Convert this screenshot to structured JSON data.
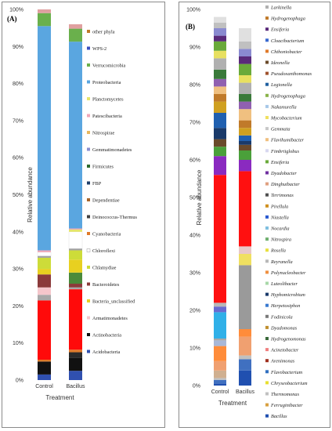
{
  "chart_data": [
    {
      "panel_label": "(A)",
      "type": "stacked_bar",
      "categories": [
        "Control",
        "Bacillus"
      ],
      "xlabel": "Treatment",
      "ylabel": "Relative abundance",
      "yticks": [
        "0%",
        "10%",
        "20%",
        "30%",
        "40%",
        "50%",
        "60%",
        "70%",
        "80%",
        "90%",
        "100%"
      ],
      "ylim": [
        0,
        100
      ],
      "legend_position": "right",
      "legend": [
        {
          "name": "other phyla",
          "color": "#c07a2a"
        },
        {
          "name": "WPS-2",
          "color": "#3a4fbf"
        },
        {
          "name": "Verrucomicrobia",
          "color": "#6ab04c"
        },
        {
          "name": "Proteobacteria",
          "color": "#5aa6e0"
        },
        {
          "name": "Planctomycetes",
          "color": "#e6e66a"
        },
        {
          "name": "Patescibacteria",
          "color": "#f0a8b8"
        },
        {
          "name": "Nitrospirae",
          "color": "#e8b860"
        },
        {
          "name": "Gemmatimonadetes",
          "color": "#8a8fd0"
        },
        {
          "name": "Firmicutes",
          "color": "#2d6b2d"
        },
        {
          "name": "FBP",
          "color": "#1f3f6b"
        },
        {
          "name": "Dependentiae",
          "color": "#a8652a"
        },
        {
          "name": "Deinococcus-Thermus",
          "color": "#404040"
        },
        {
          "name": "Cyanobacteria",
          "color": "#e07a2a"
        },
        {
          "name": "Chloroflexi",
          "color": "#ffffff"
        },
        {
          "name": "Chlamydiae",
          "color": "#cddc39"
        },
        {
          "name": "Bacteroidetes",
          "color": "#8b3a3a"
        },
        {
          "name": "Bacteria_unclassified",
          "color": "#e8d020"
        },
        {
          "name": "Armatimonadetes",
          "color": "#f5c6cb"
        },
        {
          "name": "Actinobacteria",
          "color": "#111111"
        },
        {
          "name": "Acidobacteria",
          "color": "#3050b0"
        }
      ],
      "series": [
        {
          "name": "Acidobacteria",
          "color": "#3050b0",
          "values": [
            1.5,
            2.5
          ]
        },
        {
          "name": "Actinobacteria",
          "color": "#111111",
          "values": [
            3.5,
            3.5
          ]
        },
        {
          "name": "",
          "color": "#2a2a2a",
          "values": [
            0.0,
            1.5
          ]
        },
        {
          "name": "",
          "color": "#e07a2a",
          "values": [
            0.5,
            0.7
          ]
        },
        {
          "name": "",
          "color": "#ff0a0a",
          "values": [
            16.0,
            16.3
          ]
        },
        {
          "name": "",
          "color": "#a8a8a8",
          "values": [
            1.5,
            0.5
          ]
        },
        {
          "name": "Armatimonadetes",
          "color": "#f5c6cb",
          "values": [
            2.0,
            0.0
          ]
        },
        {
          "name": "Bacteroidetes",
          "color": "#8b3a3a",
          "values": [
            3.5,
            1.0
          ]
        },
        {
          "name": "",
          "color": "#4a8a3a",
          "values": [
            0.0,
            3.0
          ]
        },
        {
          "name": "Bacteria_unclassified",
          "color": "#e8d020",
          "values": [
            1.5,
            3.5
          ]
        },
        {
          "name": "Chlamydiae",
          "color": "#cddc39",
          "values": [
            3.0,
            2.5
          ]
        },
        {
          "name": "",
          "color": "#a0a0a0",
          "values": [
            0.5,
            0.5
          ]
        },
        {
          "name": "Chloroflexi",
          "color": "#ffffff",
          "values": [
            1.0,
            4.5
          ]
        },
        {
          "name": "",
          "color": "#e6e66a",
          "values": [
            0.0,
            0.6
          ]
        },
        {
          "name": "",
          "color": "#f0a8b8",
          "values": [
            0.5,
            0.3
          ]
        },
        {
          "name": "Proteobacteria",
          "color": "#5aa6e0",
          "values": [
            60.5,
            50.4
          ]
        },
        {
          "name": "Verrucomicrobia",
          "color": "#6ab04c",
          "values": [
            3.5,
            3.5
          ]
        },
        {
          "name": "",
          "color": "#e0a0a0",
          "values": [
            1.0,
            1.2
          ]
        }
      ]
    },
    {
      "panel_label": "(B)",
      "type": "stacked_bar",
      "categories": [
        "Control",
        "Bacillus"
      ],
      "xlabel": "Treatment",
      "ylabel": "Relative abundance",
      "yticks": [
        "0%",
        "10%",
        "20%",
        "30%",
        "40%",
        "50%",
        "60%",
        "70%",
        "80%",
        "90%",
        "100%"
      ],
      "ylim": [
        0,
        100
      ],
      "legend_position": "right",
      "legend": [
        {
          "name": "Larkinella",
          "color": "#b0b0b0"
        },
        {
          "name": "Hydrogenophaga",
          "color": "#c07a2a"
        },
        {
          "name": "Ensiferia",
          "color": "#5a2a7a"
        },
        {
          "name": "Cloacibacterium",
          "color": "#3a6ad0"
        },
        {
          "name": "Chthoniobacter",
          "color": "#e07a2a"
        },
        {
          "name": "Ideonella",
          "color": "#6a4a2a"
        },
        {
          "name": "Pseudoxanthomonas",
          "color": "#a0522d"
        },
        {
          "name": "Legionella",
          "color": "#2060a0"
        },
        {
          "name": "Hydrogenophaga",
          "color": "#8ab34a"
        },
        {
          "name": "Nakamurella",
          "color": "#a8c8e8"
        },
        {
          "name": "Mycobacterium",
          "color": "#f0e060"
        },
        {
          "name": "Gemmata",
          "color": "#c8c8c8"
        },
        {
          "name": "Flavihumibacter",
          "color": "#f0c080"
        },
        {
          "name": "Fimbriiglobus",
          "color": "#d8d8f0"
        },
        {
          "name": "Ensiferia",
          "color": "#6aaa3a"
        },
        {
          "name": "Dyadobacter",
          "color": "#7030a0"
        },
        {
          "name": "Dinghuibacter",
          "color": "#e0a080"
        },
        {
          "name": "Terrimonas",
          "color": "#505050"
        },
        {
          "name": "Pirellula",
          "color": "#d09020"
        },
        {
          "name": "Niastella",
          "color": "#2a5ad0"
        },
        {
          "name": "Nocardia",
          "color": "#80c0e0"
        },
        {
          "name": "Nitrospira",
          "color": "#70b070"
        },
        {
          "name": "Rosella",
          "color": "#e8e040"
        },
        {
          "name": "Reyranella",
          "color": "#b8b8b8"
        },
        {
          "name": "Polynucleobacter",
          "color": "#f09040"
        },
        {
          "name": "Luteolibacter",
          "color": "#a8d8a8"
        },
        {
          "name": "Hyphomicrobium",
          "color": "#1a3a6a"
        },
        {
          "name": "Herpetosiphon",
          "color": "#3a7ad0"
        },
        {
          "name": "Fodinicola",
          "color": "#7a7a7a"
        },
        {
          "name": "Dyadomonas",
          "color": "#c09030"
        },
        {
          "name": "Hydrogenomonas",
          "color": "#3a6a3a"
        },
        {
          "name": "Acinetobacter",
          "color": "#f08080"
        },
        {
          "name": "Arenimonas",
          "color": "#a03020"
        },
        {
          "name": "Flavobacterium",
          "color": "#3070c0"
        },
        {
          "name": "Chryseobacterium",
          "color": "#e8e030"
        },
        {
          "name": "Thermomonas",
          "color": "#c0c0c0"
        },
        {
          "name": "Ferruginibacter",
          "color": "#d8a040"
        },
        {
          "name": "Bacillus",
          "color": "#2050b0"
        }
      ],
      "series": [
        {
          "name": "Bacillus",
          "color": "#2050b0",
          "values": [
            0.5,
            4.0
          ]
        },
        {
          "name": "",
          "color": "#4070c0",
          "values": [
            1.0,
            3.0
          ]
        },
        {
          "name": "",
          "color": "#c0c0c0",
          "values": [
            0.5,
            1.0
          ]
        },
        {
          "name": "",
          "color": "#d0b090",
          "values": [
            2.0,
            0.0
          ]
        },
        {
          "name": "",
          "color": "#f0a070",
          "values": [
            2.5,
            5.0
          ]
        },
        {
          "name": "",
          "color": "#ff8c3a",
          "values": [
            4.0,
            2.0
          ]
        },
        {
          "name": "",
          "color": "#a8b8d8",
          "values": [
            1.5,
            0.0
          ]
        },
        {
          "name": "",
          "color": "#a8a8a8",
          "values": [
            0.5,
            0.0
          ]
        },
        {
          "name": "",
          "color": "#30b0e8",
          "values": [
            7.0,
            0.0
          ]
        },
        {
          "name": "",
          "color": "#9a9a9a",
          "values": [
            0.0,
            17.0
          ]
        },
        {
          "name": "",
          "color": "#f0e060",
          "values": [
            0.0,
            3.0
          ]
        },
        {
          "name": "",
          "color": "#e8c8c8",
          "values": [
            0.0,
            2.0
          ]
        },
        {
          "name": "",
          "color": "#6a6ad0",
          "values": [
            1.5,
            0.0
          ]
        },
        {
          "name": "",
          "color": "#b8b8b8",
          "values": [
            1.0,
            0.0
          ]
        },
        {
          "name": "",
          "color": "#ff1010",
          "values": [
            34.0,
            20.0
          ]
        },
        {
          "name": "",
          "color": "#8a2ac0",
          "values": [
            5.0,
            3.0
          ]
        },
        {
          "name": "",
          "color": "#4aa03a",
          "values": [
            2.5,
            2.5
          ]
        },
        {
          "name": "",
          "color": "#6a4a2a",
          "values": [
            2.0,
            1.5
          ]
        },
        {
          "name": "",
          "color": "#1a3a6a",
          "values": [
            3.0,
            1.0
          ]
        },
        {
          "name": "",
          "color": "#2060b0",
          "values": [
            4.0,
            1.5
          ]
        },
        {
          "name": "",
          "color": "#d0a020",
          "values": [
            3.0,
            2.0
          ]
        },
        {
          "name": "",
          "color": "#c07a2a",
          "values": [
            2.0,
            2.0
          ]
        },
        {
          "name": "",
          "color": "#f0c080",
          "values": [
            2.0,
            3.0
          ]
        },
        {
          "name": "",
          "color": "#9060b0",
          "values": [
            2.0,
            2.0
          ]
        },
        {
          "name": "",
          "color": "#3a7a3a",
          "values": [
            2.5,
            2.0
          ]
        },
        {
          "name": "",
          "color": "#b0b0b0",
          "values": [
            3.0,
            3.0
          ]
        },
        {
          "name": "",
          "color": "#e8e060",
          "values": [
            2.0,
            2.0
          ]
        },
        {
          "name": "",
          "color": "#6aaa3a",
          "values": [
            2.5,
            3.0
          ]
        },
        {
          "name": "",
          "color": "#5a2a7a",
          "values": [
            1.5,
            2.0
          ]
        },
        {
          "name": "",
          "color": "#8a8ad0",
          "values": [
            2.0,
            2.0
          ]
        },
        {
          "name": "",
          "color": "#c0c0c0",
          "values": [
            1.5,
            2.0
          ]
        },
        {
          "name": "",
          "color": "#e0e0e0",
          "values": [
            1.5,
            3.5
          ]
        }
      ]
    }
  ]
}
